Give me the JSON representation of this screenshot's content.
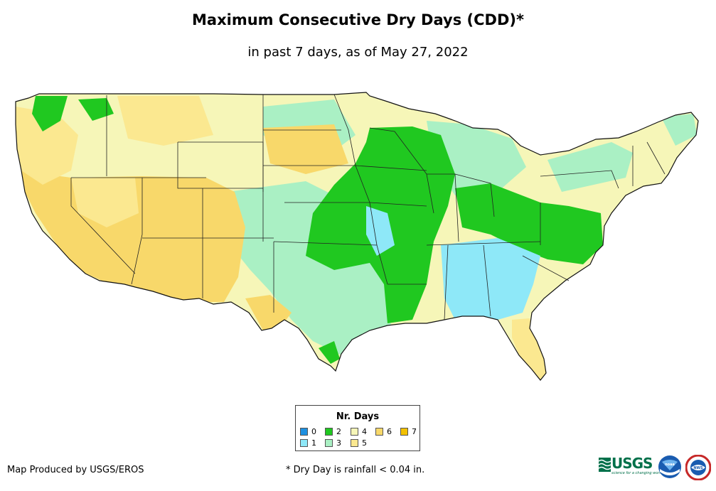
{
  "title": "Maximum Consecutive Dry Days (CDD)*",
  "subtitle": "in past 7 days, as of May 27, 2022",
  "legend": {
    "title": "Nr. Days",
    "items": [
      {
        "label": "0",
        "color": "#1e90e0"
      },
      {
        "label": "1",
        "color": "#8ee8f8"
      },
      {
        "label": "2",
        "color": "#20c820"
      },
      {
        "label": "3",
        "color": "#aaf0c4"
      },
      {
        "label": "4",
        "color": "#f6f6b8"
      },
      {
        "label": "5",
        "color": "#fbe890"
      },
      {
        "label": "6",
        "color": "#f8d86a"
      },
      {
        "label": "7",
        "color": "#f2c000"
      }
    ]
  },
  "footer": {
    "credit": "Map Produced by USGS/EROS",
    "note": "* Dry Day is rainfall < 0.04 in."
  },
  "logos": {
    "usgs": "USGS",
    "usgs_tagline": "science for a changing world",
    "noaa": "noaa",
    "nws": "NWS"
  }
}
